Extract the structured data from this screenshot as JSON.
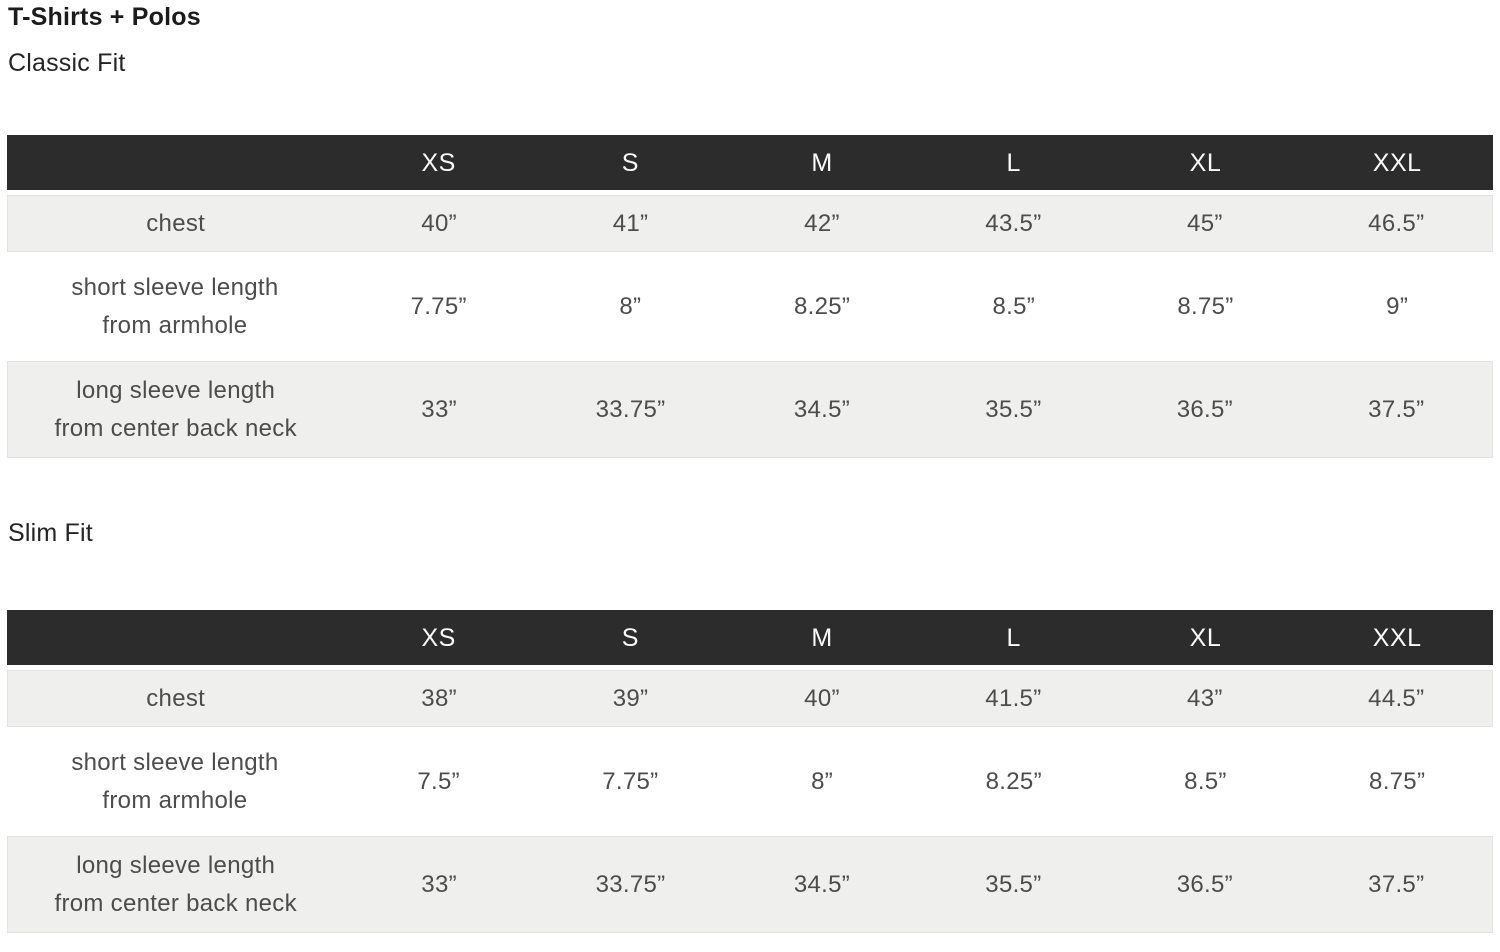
{
  "page_title": "T-Shirts + Polos",
  "sizes": [
    "XS",
    "S",
    "M",
    "L",
    "XL",
    "XXL"
  ],
  "classic": {
    "heading": "Classic Fit",
    "rows": [
      {
        "label": "chest",
        "values": [
          "40”",
          "41”",
          "42”",
          "43.5”",
          "45”",
          "46.5”"
        ]
      },
      {
        "label": "short sleeve length\nfrom armhole",
        "values": [
          "7.75”",
          "8”",
          "8.25”",
          "8.5”",
          "8.75”",
          "9”"
        ]
      },
      {
        "label": "long sleeve length\nfrom center back neck",
        "values": [
          "33”",
          "33.75”",
          "34.5”",
          "35.5”",
          "36.5”",
          "37.5”"
        ]
      }
    ]
  },
  "slim": {
    "heading": "Slim Fit",
    "rows": [
      {
        "label": "chest",
        "values": [
          "38”",
          "39”",
          "40”",
          "41.5”",
          "43”",
          "44.5”"
        ]
      },
      {
        "label": "short sleeve length\nfrom armhole",
        "values": [
          "7.5”",
          "7.75”",
          "8”",
          "8.25”",
          "8.5”",
          "8.75”"
        ]
      },
      {
        "label": "long sleeve length\nfrom center back neck",
        "values": [
          "33”",
          "33.75”",
          "34.5”",
          "35.5”",
          "36.5”",
          "37.5”"
        ]
      }
    ]
  },
  "colors": {
    "header_bg": "#2c2c2c",
    "header_text": "#fafafa",
    "row_alt_bg": "#efefee",
    "row_border": "#e2e2e2",
    "body_text": "#4c4c4c",
    "title_text": "#1b1b1b"
  }
}
